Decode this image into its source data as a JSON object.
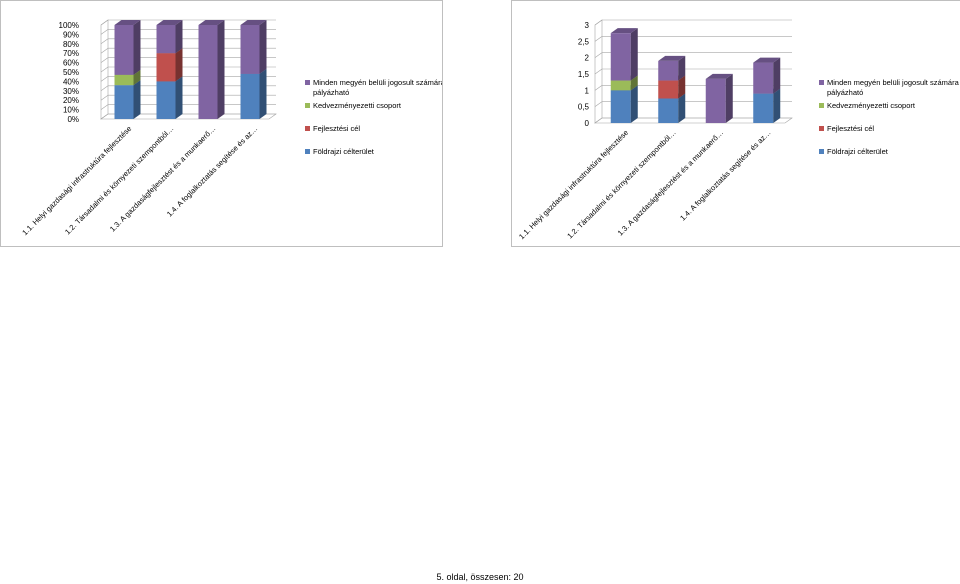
{
  "chart_data": [
    {
      "type": "bar",
      "stacked": true,
      "percent_stacked": true,
      "three_d": true,
      "categories": [
        "1.1. Helyi gazdasági infrastruktúra fejlesztése",
        "1.2. Társadalmi és környezeti szempontból…",
        "1.3. A gazdaságfejlesztést és a munkaerő…",
        "1.4. A foglalkoztatás segítése és az…"
      ],
      "series": [
        {
          "name": "Földrajzi célterület",
          "color": "#4f81bd",
          "values": [
            36,
            40,
            0,
            48
          ]
        },
        {
          "name": "Fejlesztési cél",
          "color": "#c0504d",
          "values": [
            0,
            30,
            0,
            0
          ]
        },
        {
          "name": "Kedvezményezetti csoport",
          "color": "#9bbb59",
          "values": [
            11,
            0,
            0,
            0
          ]
        },
        {
          "name": "Minden megyén belüli jogosult számára pályázható",
          "color": "#8064a2",
          "values": [
            53,
            30,
            100,
            52
          ]
        }
      ],
      "yticks": [
        "0%",
        "10%",
        "20%",
        "30%",
        "40%",
        "50%",
        "60%",
        "70%",
        "80%",
        "90%",
        "100%"
      ],
      "ylim": [
        0,
        100
      ],
      "legend_position": "right"
    },
    {
      "type": "bar",
      "stacked": true,
      "three_d": true,
      "categories": [
        "1.1. Helyi gazdasági infrastruktúra fejlesztése",
        "1.2. Társadalmi és környezeti szempontból…",
        "1.3. A gazdaságfejlesztést és a munkaerő…",
        "1.4. A foglalkoztatás segítése és az…"
      ],
      "series": [
        {
          "name": "Földrajzi célterület",
          "color": "#4f81bd",
          "values": [
            1,
            0.75,
            0,
            0.9
          ]
        },
        {
          "name": "Fejlesztési cél",
          "color": "#c0504d",
          "values": [
            0,
            0.55,
            0,
            0
          ]
        },
        {
          "name": "Kedvezményezetti csoport",
          "color": "#9bbb59",
          "values": [
            0.3,
            0,
            0,
            0
          ]
        },
        {
          "name": "Minden megyén belüli jogosult számára pályázható",
          "color": "#8064a2",
          "values": [
            1.45,
            0.6,
            1.35,
            0.95
          ]
        }
      ],
      "yticks": [
        "0",
        "0,5",
        "1",
        "1,5",
        "2",
        "2,5",
        "3"
      ],
      "ylim": [
        0,
        3
      ],
      "legend_position": "right"
    }
  ],
  "footer": "5. oldal, összesen: 20"
}
